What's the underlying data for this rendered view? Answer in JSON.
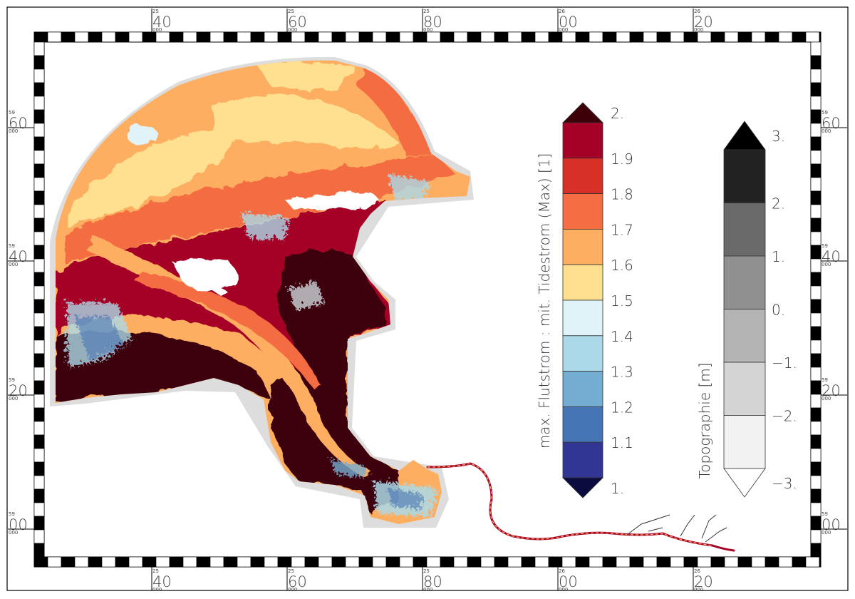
{
  "map": {
    "axes": {
      "x_top": [
        {
          "big": "40",
          "small": "25",
          "sub": "000"
        },
        {
          "big": "60",
          "small": "25",
          "sub": "000"
        },
        {
          "big": "80",
          "small": "25",
          "sub": "000"
        },
        {
          "big": "00",
          "small": "26",
          "sub": "000"
        },
        {
          "big": "20",
          "small": "26",
          "sub": "000"
        }
      ],
      "x_bottom": [
        {
          "big": "40",
          "small": "25",
          "sub": "000"
        },
        {
          "big": "60",
          "small": "25",
          "sub": "000"
        },
        {
          "big": "80",
          "small": "25",
          "sub": "000"
        },
        {
          "big": "00",
          "small": "26",
          "sub": "000"
        },
        {
          "big": "20",
          "small": "26",
          "sub": "000"
        }
      ],
      "y_left": [
        {
          "big": "60",
          "small": "59",
          "sub": "000"
        },
        {
          "big": "40",
          "small": "59",
          "sub": "000"
        },
        {
          "big": "20",
          "small": "59",
          "sub": "000"
        },
        {
          "big": "00",
          "small": "59",
          "sub": "000"
        }
      ],
      "y_right": [
        {
          "big": "60",
          "small": "59",
          "sub": "000"
        },
        {
          "big": "40",
          "small": "59",
          "sub": "000"
        },
        {
          "big": "20",
          "small": "59",
          "sub": "000"
        },
        {
          "big": "00",
          "small": "59",
          "sub": "000"
        }
      ]
    },
    "legends": {
      "flow": {
        "title": "max. Flutstrom : mit. Tidestrom (Max) [1]",
        "labels": [
          "2.",
          "1.9",
          "1.8",
          "1.7",
          "1.6",
          "1.5",
          "1.4",
          "1.3",
          "1.2",
          "1.1",
          "1."
        ],
        "colors": [
          "#a50026",
          "#d73027",
          "#f46d43",
          "#fdae61",
          "#fee090",
          "#e0f3f8",
          "#abd9e9",
          "#74add1",
          "#4575b4",
          "#313695"
        ],
        "over_color": "#3d0008",
        "under_color": "#0b0b40"
      },
      "topo": {
        "title": "Topographie [m]",
        "labels": [
          "3.",
          "2.",
          "1.",
          "0.",
          "−1.",
          "−2.",
          "−3."
        ],
        "colors": [
          "#222222",
          "#6a6a6a",
          "#909090",
          "#b4b4b4",
          "#d4d4d4",
          "#f2f2f2"
        ],
        "over_color": "#000000",
        "under_color": "#ffffff"
      }
    }
  }
}
